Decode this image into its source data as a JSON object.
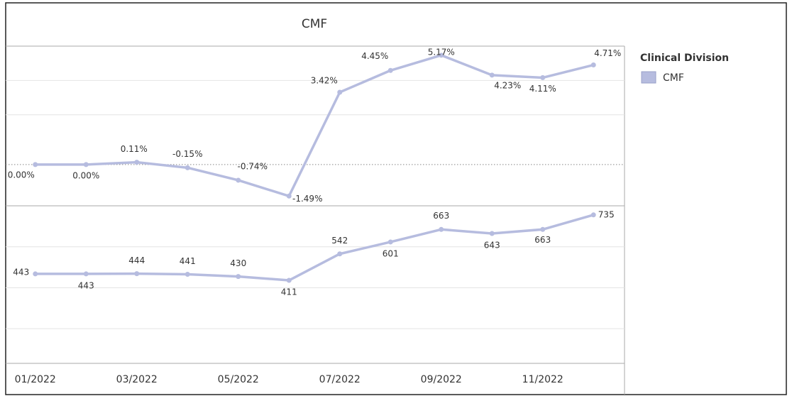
{
  "chart_data": {
    "type": "line",
    "title": "CMF",
    "legend": {
      "title": "Clinical Division",
      "items": [
        "CMF"
      ]
    },
    "color": "#b6bcdf",
    "categories": [
      "01/2022",
      null,
      "03/2022",
      null,
      "05/2022",
      null,
      "07/2022",
      null,
      "09/2022",
      null,
      "11/2022",
      null
    ],
    "panes": [
      {
        "values": [
          0.0,
          0.0,
          0.11,
          -0.15,
          -0.74,
          -1.49,
          3.42,
          4.45,
          5.17,
          4.23,
          4.11,
          4.71
        ],
        "value_labels": [
          "0.00%",
          "0.00%",
          "0.11%",
          "-0.15%",
          "-0.74%",
          "-1.49%",
          "3.42%",
          "4.45%",
          "5.17%",
          "4.23%",
          "4.11%",
          "4.71%"
        ],
        "ylim": [
          -1.95,
          5.6
        ],
        "reference_line": 0
      },
      {
        "values": [
          443,
          443,
          444,
          441,
          430,
          411,
          542,
          601,
          663,
          643,
          663,
          735
        ],
        "ylim": [
          0,
          780
        ]
      }
    ]
  }
}
